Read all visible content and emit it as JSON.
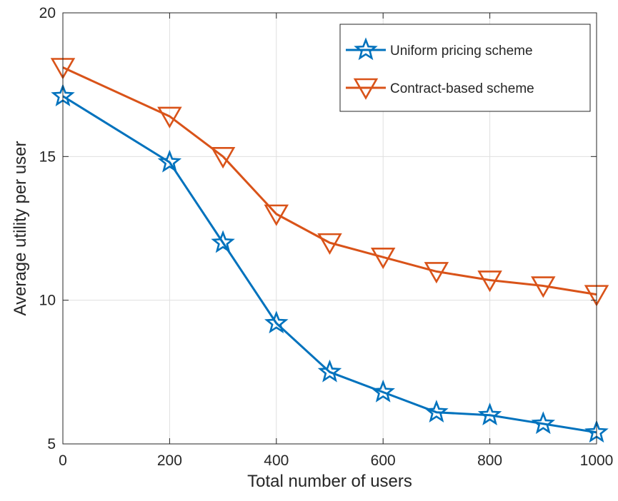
{
  "chart_data": {
    "type": "line",
    "xlabel": "Total number of users",
    "ylabel": "Average utility per user",
    "xlim": [
      0,
      1000
    ],
    "ylim": [
      5,
      20
    ],
    "xticks": [
      0,
      200,
      400,
      600,
      800,
      1000
    ],
    "yticks": [
      5,
      10,
      15,
      20
    ],
    "grid": true,
    "legend_position": "top-right",
    "series": [
      {
        "name": "Uniform pricing scheme",
        "color": "#0072BD",
        "marker": "star",
        "x": [
          0,
          200,
          300,
          400,
          500,
          600,
          700,
          800,
          900,
          1000
        ],
        "y": [
          17.1,
          14.8,
          12.0,
          9.2,
          7.5,
          6.8,
          6.1,
          6.0,
          5.7,
          5.4
        ]
      },
      {
        "name": "Contract-based scheme",
        "color": "#D95319",
        "marker": "triangle-down",
        "x": [
          0,
          200,
          300,
          400,
          500,
          600,
          700,
          800,
          900,
          1000
        ],
        "y": [
          18.1,
          16.4,
          15.0,
          13.0,
          12.0,
          11.5,
          11.0,
          10.7,
          10.5,
          10.2
        ]
      }
    ]
  }
}
